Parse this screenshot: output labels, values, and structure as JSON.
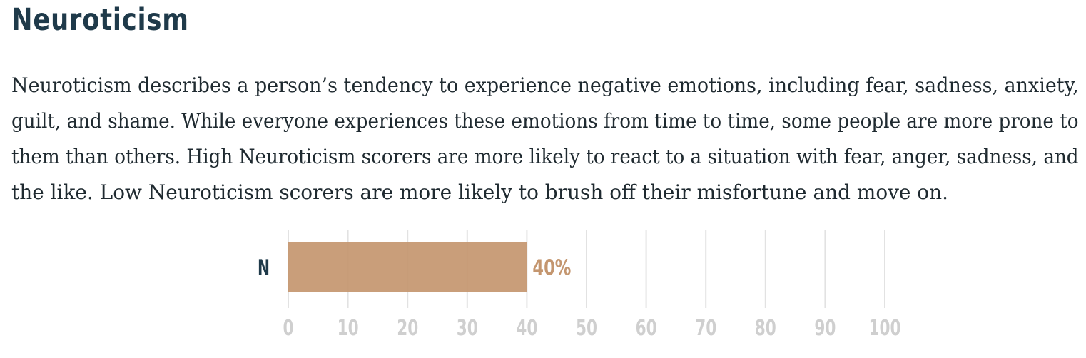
{
  "section": {
    "title": "Neuroticism",
    "description_lines": [
      "Neuroticism describes a person’s tendency to experience negative emotions, including fear, sadness, anxiety,",
      "guilt, and shame. While everyone experiences these emotions from time to time, some people are more prone to",
      "them than others. High Neuroticism scorers are more likely to react to a situation with fear, anger, sadness, and",
      "the like. Low Neuroticism scorers are more likely to brush off their misfortune and move on."
    ]
  },
  "colors": {
    "bar": "#c4966f",
    "value_label": "#c4966f",
    "title": "#1f3a4a",
    "grid": "#e2e2e2",
    "tick": "#cfcfcf"
  },
  "chart_data": {
    "type": "bar",
    "orientation": "horizontal",
    "categories": [
      "N"
    ],
    "values": [
      40
    ],
    "value_labels": [
      "40%"
    ],
    "xlim": [
      0,
      100
    ],
    "xticks": [
      0,
      10,
      20,
      30,
      40,
      50,
      60,
      70,
      80,
      90,
      100
    ],
    "xtick_labels": [
      "0",
      "10",
      "20",
      "30",
      "40",
      "50",
      "60",
      "70",
      "80",
      "90",
      "100"
    ],
    "grid": true,
    "title": "",
    "xlabel": "",
    "ylabel": ""
  }
}
